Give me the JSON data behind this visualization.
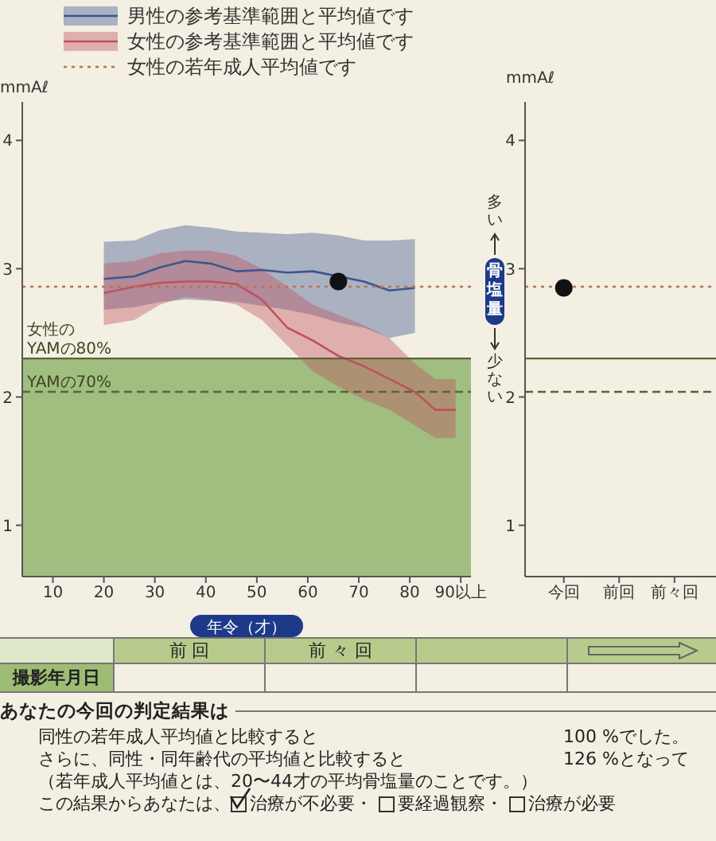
{
  "chart_data": [
    {
      "type": "line",
      "ylabel": "mmAℓ",
      "xlabel": "年令（才）",
      "legend": "top left",
      "grid": false,
      "x": [
        20,
        26,
        31,
        36,
        41,
        46,
        51,
        56,
        61,
        66,
        71,
        76,
        81,
        85,
        89
      ],
      "xlim": [
        4,
        92
      ],
      "xticks": [
        10,
        20,
        30,
        40,
        50,
        60,
        70,
        80,
        {
          "value": 90,
          "label": "90以上"
        }
      ],
      "ylim": [
        0.6,
        4.3
      ],
      "yticks": [
        1,
        2,
        3,
        4
      ],
      "series": [
        {
          "name": "男性の参考基準範囲と平均値です",
          "color": "#3d558f",
          "values": [
            2.92,
            2.94,
            3.01,
            3.06,
            3.04,
            2.98,
            2.99,
            2.97,
            2.98,
            2.94,
            2.9,
            2.83,
            2.85,
            null,
            null
          ],
          "lower": [
            2.68,
            2.7,
            2.74,
            2.76,
            2.75,
            2.74,
            2.71,
            2.68,
            2.64,
            2.58,
            2.54,
            2.46,
            2.5,
            null,
            null
          ],
          "upper": [
            3.21,
            3.22,
            3.3,
            3.34,
            3.32,
            3.29,
            3.28,
            3.27,
            3.28,
            3.26,
            3.22,
            3.22,
            3.23,
            null,
            null
          ]
        },
        {
          "name": "女性の参考基準範囲と平均値です",
          "color": "#c0505e",
          "values": [
            2.81,
            2.86,
            2.89,
            2.9,
            2.9,
            2.88,
            2.76,
            2.54,
            2.44,
            2.32,
            2.24,
            2.14,
            2.04,
            1.9,
            1.9
          ],
          "lower": [
            2.56,
            2.6,
            2.72,
            2.78,
            2.76,
            2.72,
            2.6,
            2.4,
            2.2,
            2.08,
            1.98,
            1.9,
            1.78,
            1.68,
            1.68
          ],
          "upper": [
            3.04,
            3.06,
            3.12,
            3.14,
            3.14,
            3.1,
            3.0,
            2.86,
            2.72,
            2.64,
            2.56,
            2.46,
            2.26,
            2.14,
            2.14
          ]
        },
        {
          "type": "scatter",
          "color": "#111111",
          "x": [
            66
          ],
          "values": [
            2.9
          ]
        }
      ],
      "ref_lines": [
        {
          "axis": "y",
          "value": 2.86,
          "label": "女性の若年成人平均値です",
          "color": "#c07050",
          "line_style": "dotted"
        },
        {
          "axis": "y",
          "value": 2.3,
          "label": "女性の YAMの80%",
          "color": "#5f6238",
          "line_style": "solid"
        },
        {
          "axis": "y",
          "value": 2.04,
          "label": "YAMの70%",
          "color": "#5f6238",
          "line_style": "dashed"
        }
      ],
      "bands": [
        {
          "axis": "y",
          "from": 0.6,
          "to": 2.3,
          "color": "#8fb56e"
        }
      ],
      "annotations": [
        "前 回",
        "前 々 回",
        "撮影年月日",
        "あなたの今回の判定結果は",
        "同性の若年成人平均値と比較すると",
        "100 %でした。",
        "さらに、同性・同年齢代の平均値と比較すると",
        "126 %となって",
        "（若年成人平均値とは、20〜44才の平均骨塩量のことです。）",
        "この結果からあなたは、",
        "治療が不必要・",
        "要経過観察・",
        "治療が必要"
      ]
    },
    {
      "type": "scatter",
      "ylabel": "mmAℓ",
      "grid": false,
      "categories": [
        "今回",
        "前回",
        "前々回"
      ],
      "ylim": [
        0.6,
        4.3
      ],
      "yticks": [
        1,
        2,
        3,
        4
      ],
      "series": [
        {
          "color": "#111111",
          "values": [
            2.85,
            null,
            null
          ]
        }
      ],
      "ref_lines": [
        {
          "axis": "y",
          "value": 2.86,
          "color": "#c07050",
          "line_style": "dotted"
        },
        {
          "axis": "y",
          "value": 2.3,
          "color": "#5f6238",
          "line_style": "solid"
        },
        {
          "axis": "y",
          "value": 2.04,
          "color": "#5f6238",
          "line_style": "dashed"
        }
      ],
      "annotations": [
        "多い",
        "骨塩量",
        "少ない"
      ]
    }
  ]
}
